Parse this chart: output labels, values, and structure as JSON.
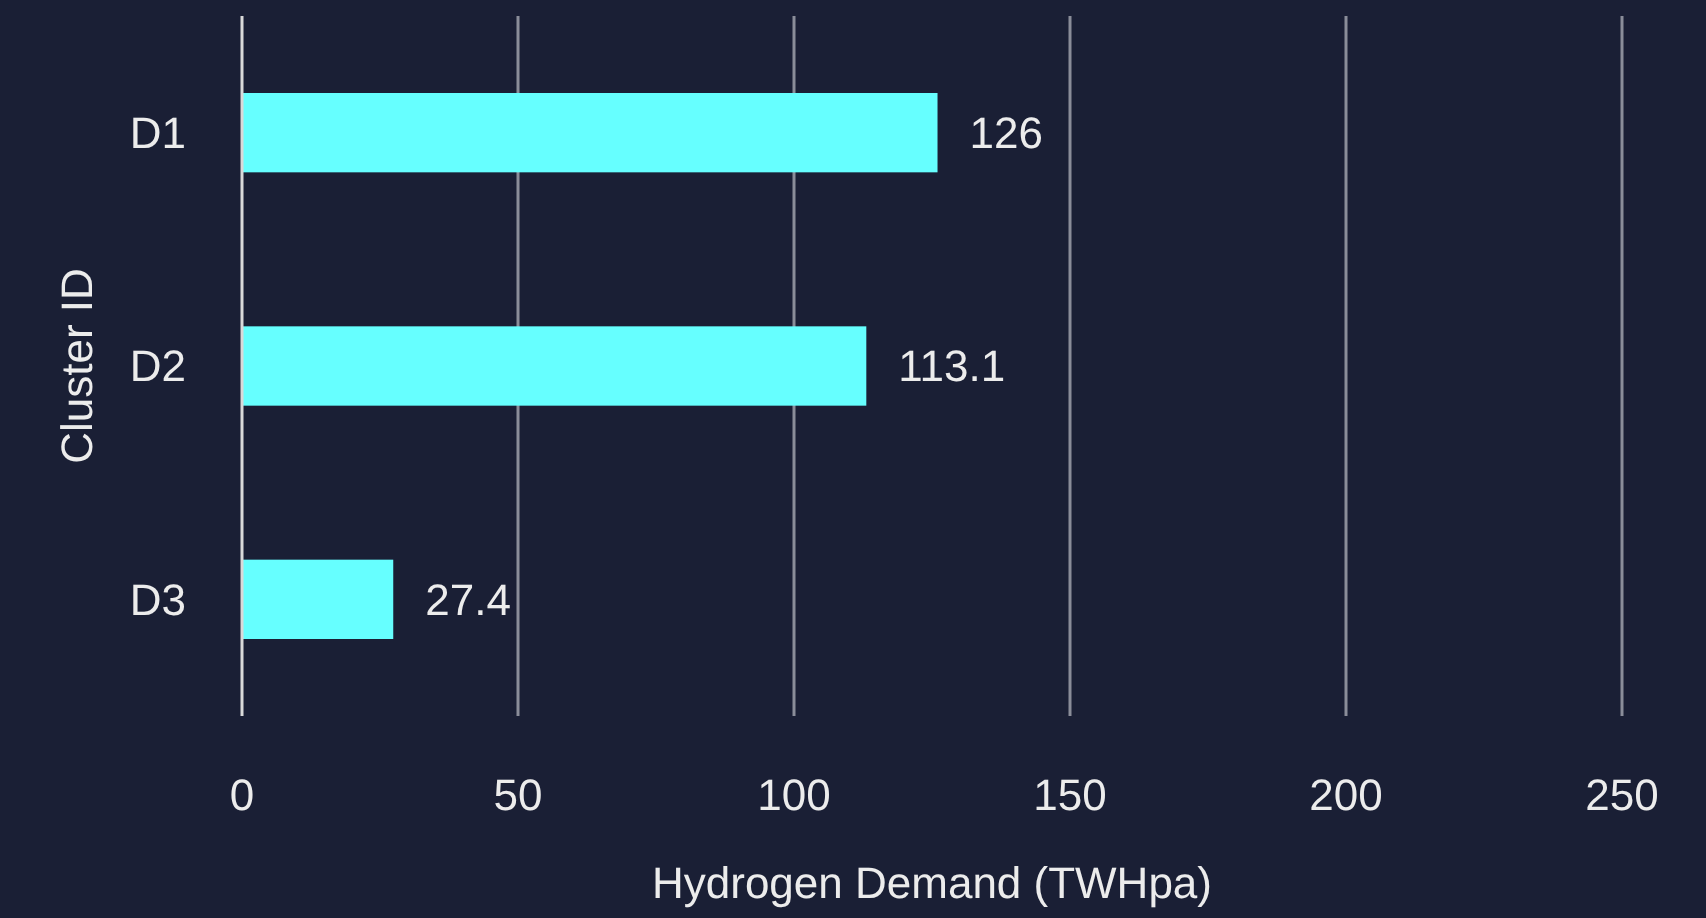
{
  "chart_data": {
    "type": "bar",
    "orientation": "horizontal",
    "xlabel": "Hydrogen Demand (TWHpa)",
    "ylabel": "Cluster ID",
    "categories": [
      "D1",
      "D2",
      "D3"
    ],
    "values": [
      126,
      113.1,
      27.4
    ],
    "color": "#66ffff",
    "xlim": [
      0,
      250
    ],
    "xticks": [
      0,
      50,
      100,
      150,
      200,
      250
    ],
    "grid": "x",
    "data_labels": true
  }
}
